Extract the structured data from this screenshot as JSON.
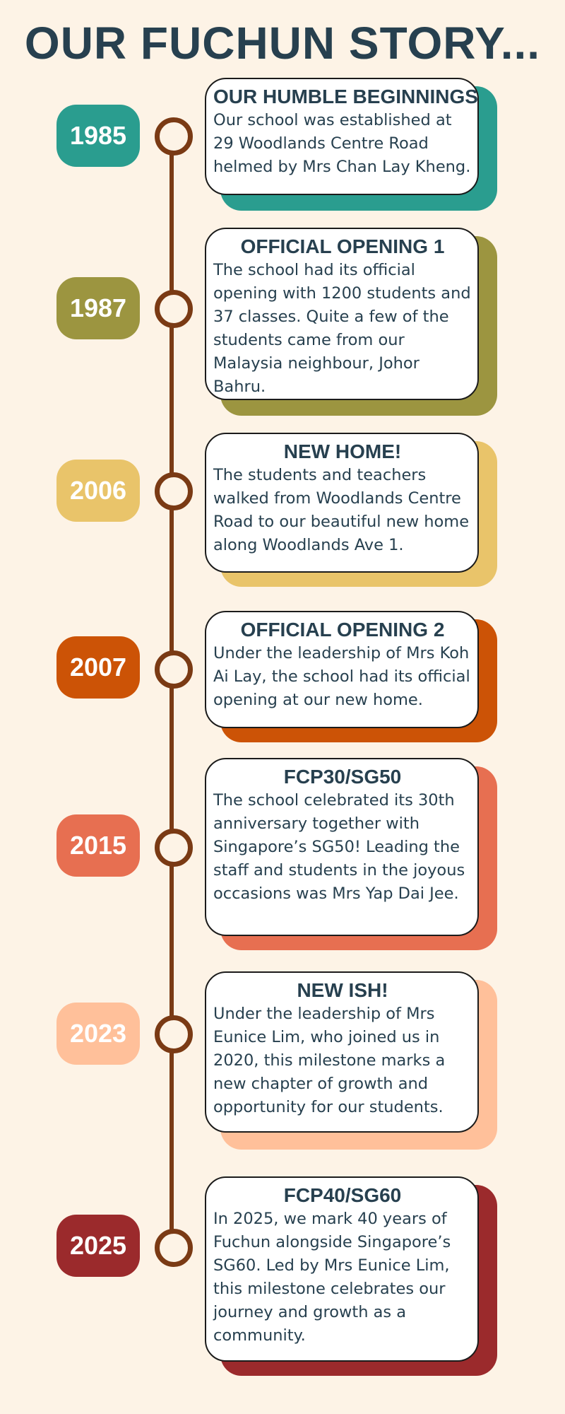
{
  "title": "OUR FUCHUN STORY...",
  "events": [
    {
      "year": "1985",
      "color": "#2a9d8f",
      "heading": "OUR HUMBLE BEGINNINGS",
      "text": "Our school was established at 29 Woodlands Centre Road helmed by Mrs Chan Lay Kheng."
    },
    {
      "year": "1987",
      "color": "#9c9540",
      "heading": "OFFICIAL OPENING 1",
      "text": "The school had its official opening with 1200 students and 37 classes. Quite a few of the students came from our Malaysia neighbour, Johor Bahru."
    },
    {
      "year": "2006",
      "color": "#e9c46a",
      "heading": "NEW HOME!",
      "text": "The students and teachers walked from Woodlands Centre Road to our beautiful new home along Woodlands Ave 1."
    },
    {
      "year": "2007",
      "color": "#cc5306",
      "heading": "OFFICIAL OPENING 2",
      "text": "Under the leadership of Mrs Koh Ai Lay, the school had its official opening at our new home."
    },
    {
      "year": "2015",
      "color": "#e76f51",
      "heading": "FCP30/SG50",
      "text": "The school celebrated its 30th anniversary together with Singapore’s SG50! Leading the staff and students in the joyous occasions was Mrs Yap Dai Jee."
    },
    {
      "year": "2023",
      "color": "#ffc09a",
      "heading": "NEW ISH!",
      "text": "Under the leadership of Mrs Eunice Lim, who joined us in 2020, this milestone marks a new chapter of growth and opportunity for our students."
    },
    {
      "year": "2025",
      "color": "#9b2a2c",
      "heading": "FCP40/SG60",
      "text": "In 2025, we mark 40 years of Fuchun alongside Singapore’s SG60. Led by Mrs Eunice Lim, this milestone celebrates our journey and growth as a community."
    }
  ]
}
